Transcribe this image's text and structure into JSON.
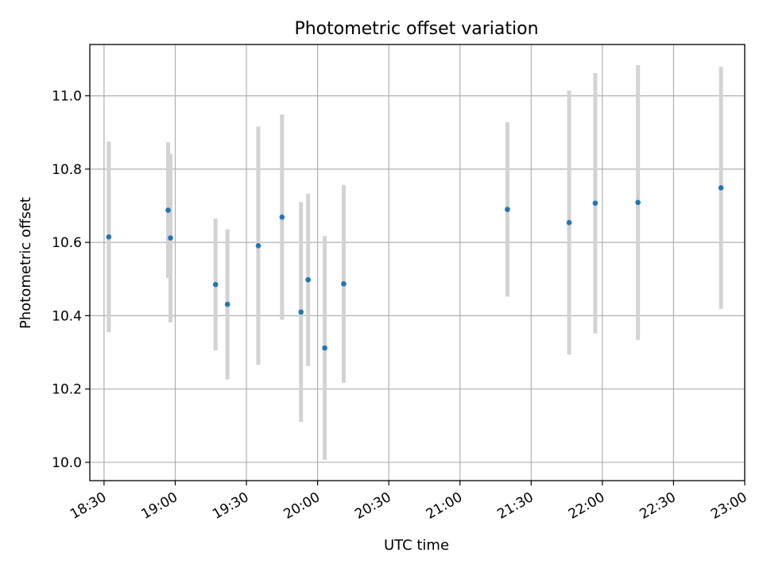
{
  "chart_data": {
    "type": "scatter",
    "title": "Photometric offset variation",
    "xlabel": "UTC time",
    "ylabel": "Photometric offset",
    "x_axis": {
      "kind": "time",
      "range": [
        "18:24",
        "23:00"
      ],
      "ticks": [
        "18:30",
        "19:00",
        "19:30",
        "20:00",
        "20:30",
        "21:00",
        "21:30",
        "22:00",
        "22:30",
        "23:00"
      ]
    },
    "y_axis": {
      "range": [
        9.95,
        11.14
      ],
      "ticks": [
        "10.0",
        "10.2",
        "10.4",
        "10.6",
        "10.8",
        "11.0"
      ]
    },
    "grid": true,
    "point_color": "#1f77b4",
    "errorbar_color": "#d3d3d3",
    "points": [
      {
        "x": "18:32",
        "y": 10.615,
        "err": 0.26
      },
      {
        "x": "18:57",
        "y": 10.688,
        "err": 0.185
      },
      {
        "x": "18:58",
        "y": 10.612,
        "err": 0.23
      },
      {
        "x": "19:17",
        "y": 10.485,
        "err": 0.18
      },
      {
        "x": "19:22",
        "y": 10.431,
        "err": 0.205
      },
      {
        "x": "19:35",
        "y": 10.591,
        "err": 0.325
      },
      {
        "x": "19:45",
        "y": 10.669,
        "err": 0.28
      },
      {
        "x": "19:53",
        "y": 10.41,
        "err": 0.3
      },
      {
        "x": "19:56",
        "y": 10.498,
        "err": 0.235
      },
      {
        "x": "20:03",
        "y": 10.312,
        "err": 0.305
      },
      {
        "x": "20:11",
        "y": 10.487,
        "err": 0.27
      },
      {
        "x": "21:20",
        "y": 10.69,
        "err": 0.238
      },
      {
        "x": "21:46",
        "y": 10.654,
        "err": 0.36
      },
      {
        "x": "21:57",
        "y": 10.707,
        "err": 0.355
      },
      {
        "x": "22:15",
        "y": 10.709,
        "err": 0.375
      },
      {
        "x": "22:50",
        "y": 10.749,
        "err": 0.33
      }
    ]
  }
}
